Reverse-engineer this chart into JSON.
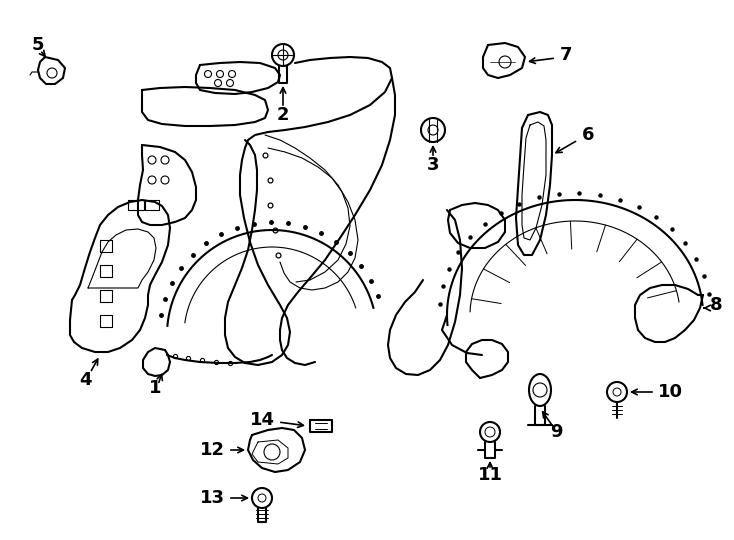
{
  "background_color": "#ffffff",
  "line_color": "#000000",
  "figsize": [
    7.34,
    5.4
  ],
  "dpi": 100,
  "xlim": [
    0,
    734
  ],
  "ylim": [
    0,
    540
  ]
}
